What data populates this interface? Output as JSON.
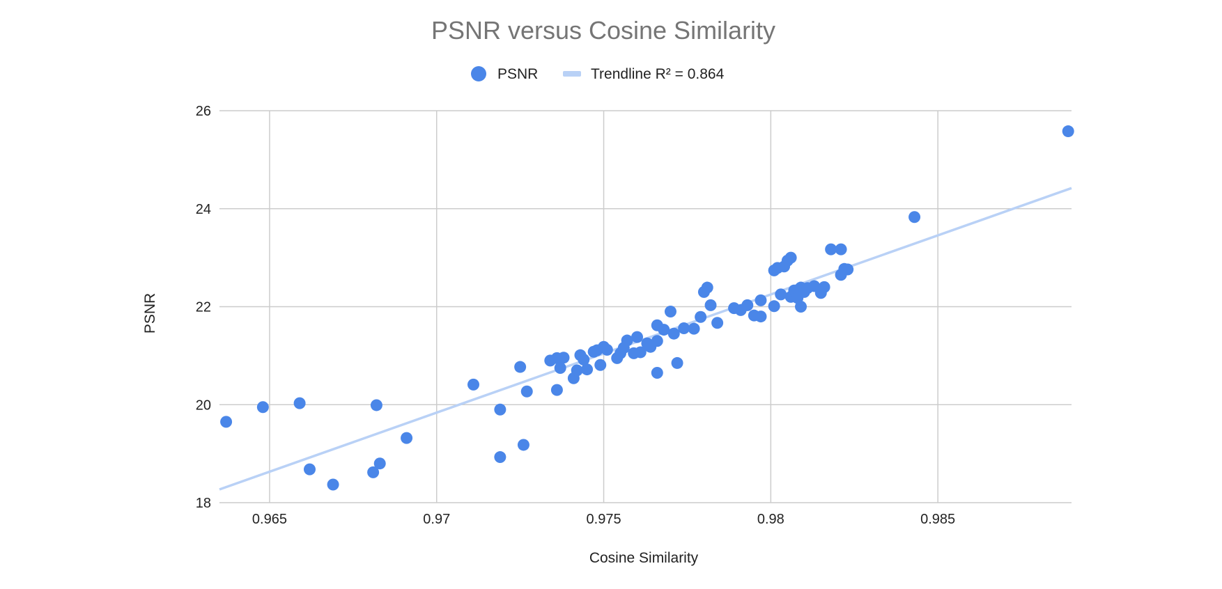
{
  "chart_data": {
    "type": "scatter",
    "title": "PSNR versus Cosine Similarity",
    "xlabel": "Cosine Similarity",
    "ylabel": "PSNR",
    "xlim": [
      0.9635,
      0.989
    ],
    "ylim": [
      18,
      26
    ],
    "x_ticks": [
      0.965,
      0.97,
      0.975,
      0.98,
      0.985
    ],
    "x_tick_labels": [
      "0.965",
      "0.97",
      "0.975",
      "0.98",
      "0.985"
    ],
    "y_ticks": [
      18,
      20,
      22,
      24,
      26
    ],
    "y_tick_labels": [
      "18",
      "20",
      "22",
      "24",
      "26"
    ],
    "grid": true,
    "legend_position": "top",
    "colors": {
      "points": "#4a86e8",
      "trendline": "#b9d1f6",
      "grid": "#cccccc",
      "title": "#757575"
    },
    "series": [
      {
        "name": "PSNR",
        "marker": "circle",
        "points": [
          [
            0.9637,
            19.65
          ],
          [
            0.9648,
            19.95
          ],
          [
            0.9659,
            20.03
          ],
          [
            0.9662,
            18.68
          ],
          [
            0.9669,
            18.37
          ],
          [
            0.9681,
            18.62
          ],
          [
            0.9682,
            19.99
          ],
          [
            0.9683,
            18.8
          ],
          [
            0.9691,
            19.32
          ],
          [
            0.9711,
            20.41
          ],
          [
            0.9719,
            19.9
          ],
          [
            0.9719,
            18.93
          ],
          [
            0.9725,
            20.77
          ],
          [
            0.9726,
            19.18
          ],
          [
            0.9727,
            20.27
          ],
          [
            0.9734,
            20.9
          ],
          [
            0.9736,
            20.3
          ],
          [
            0.9736,
            20.95
          ],
          [
            0.9737,
            20.75
          ],
          [
            0.9738,
            20.96
          ],
          [
            0.9741,
            20.54
          ],
          [
            0.9742,
            20.7
          ],
          [
            0.9743,
            21.01
          ],
          [
            0.9744,
            20.92
          ],
          [
            0.9745,
            20.72
          ],
          [
            0.9747,
            21.08
          ],
          [
            0.9748,
            21.11
          ],
          [
            0.9749,
            20.81
          ],
          [
            0.975,
            21.18
          ],
          [
            0.9751,
            21.12
          ],
          [
            0.9754,
            20.95
          ],
          [
            0.9755,
            21.05
          ],
          [
            0.9756,
            21.16
          ],
          [
            0.9757,
            21.31
          ],
          [
            0.9759,
            21.05
          ],
          [
            0.976,
            21.38
          ],
          [
            0.9761,
            21.07
          ],
          [
            0.9763,
            21.25
          ],
          [
            0.9764,
            21.18
          ],
          [
            0.9766,
            21.3
          ],
          [
            0.9766,
            21.62
          ],
          [
            0.9766,
            20.65
          ],
          [
            0.9768,
            21.53
          ],
          [
            0.977,
            21.9
          ],
          [
            0.9771,
            21.45
          ],
          [
            0.9772,
            20.85
          ],
          [
            0.9774,
            21.56
          ],
          [
            0.9777,
            21.55
          ],
          [
            0.9779,
            21.79
          ],
          [
            0.978,
            22.3
          ],
          [
            0.9781,
            22.39
          ],
          [
            0.9782,
            22.03
          ],
          [
            0.9784,
            21.67
          ],
          [
            0.9789,
            21.97
          ],
          [
            0.9791,
            21.93
          ],
          [
            0.9793,
            22.03
          ],
          [
            0.9795,
            21.82
          ],
          [
            0.9797,
            21.8
          ],
          [
            0.9797,
            22.13
          ],
          [
            0.9801,
            22.01
          ],
          [
            0.9801,
            22.74
          ],
          [
            0.9802,
            22.79
          ],
          [
            0.9803,
            22.25
          ],
          [
            0.9804,
            22.82
          ],
          [
            0.9805,
            22.94
          ],
          [
            0.9806,
            22.2
          ],
          [
            0.9806,
            23.0
          ],
          [
            0.9807,
            22.33
          ],
          [
            0.9808,
            22.18
          ],
          [
            0.9809,
            22.0
          ],
          [
            0.9809,
            22.39
          ],
          [
            0.981,
            22.3
          ],
          [
            0.9811,
            22.38
          ],
          [
            0.9813,
            22.42
          ],
          [
            0.9815,
            22.28
          ],
          [
            0.9816,
            22.4
          ],
          [
            0.9818,
            23.17
          ],
          [
            0.9821,
            23.17
          ],
          [
            0.9821,
            22.65
          ],
          [
            0.9822,
            22.77
          ],
          [
            0.9823,
            22.76
          ],
          [
            0.9843,
            23.83
          ],
          [
            0.9889,
            25.58
          ]
        ]
      },
      {
        "name": "Trendline R² = 0.864",
        "type": "line",
        "points": [
          [
            0.9635,
            18.27
          ],
          [
            0.989,
            24.42
          ]
        ]
      }
    ]
  }
}
